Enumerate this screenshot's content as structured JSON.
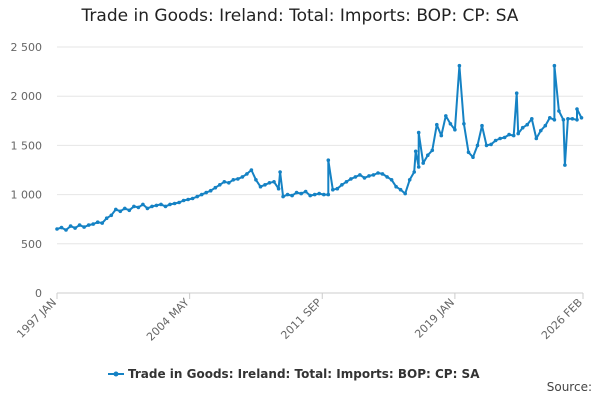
{
  "title": "Trade in Goods: Ireland: Total: Imports: BOP: CP: SA",
  "source_label": "Source:",
  "colors": {
    "series": "#1582c4",
    "grid": "#e6e6e6",
    "axis": "#cccccc",
    "tick_text": "#666666"
  },
  "chart_data": {
    "type": "line",
    "title": "Trade in Goods: Ireland: Total: Imports: BOP: CP: SA",
    "xlabel": "",
    "ylabel": "",
    "x_start": "1997 JAN",
    "x_end": "2026 FEB",
    "xlim_months": [
      0,
      349
    ],
    "ylim": [
      0,
      2500
    ],
    "yticks": [
      0,
      500,
      1000,
      1500,
      2000,
      2500
    ],
    "ytick_labels": [
      "0",
      "500",
      "1 000",
      "1 500",
      "2 000",
      "2 500"
    ],
    "xticks": [
      {
        "month": 0,
        "label": "1997 JAN"
      },
      {
        "month": 88,
        "label": "2004 MAY"
      },
      {
        "month": 176,
        "label": "2011 SEP"
      },
      {
        "month": 264,
        "label": "2019 JAN"
      },
      {
        "month": 349,
        "label": "2026 FEB"
      }
    ],
    "legend": "bottom-center",
    "series": [
      {
        "name": "Trade in Goods: Ireland: Total: Imports: BOP: CP: SA",
        "sample_every_months": 3,
        "values": [
          650,
          665,
          640,
          680,
          660,
          690,
          670,
          690,
          700,
          720,
          710,
          760,
          790,
          850,
          830,
          860,
          840,
          880,
          870,
          900,
          860,
          880,
          890,
          900,
          880,
          900,
          910,
          920,
          940,
          950,
          960,
          980,
          1000,
          1020,
          1040,
          1070,
          1100,
          1130,
          1120,
          1150,
          1160,
          1180,
          1210,
          1250,
          1150,
          1080,
          1100,
          1120,
          1130,
          1060,
          980,
          1000,
          990,
          1020,
          1010,
          1030,
          990,
          1000,
          1010,
          1000,
          1000,
          1050,
          1060,
          1100,
          1130,
          1160,
          1180,
          1200,
          1170,
          1190,
          1200,
          1220,
          1210,
          1180,
          1150,
          1080,
          1050,
          1010,
          1150,
          1230,
          1280,
          1320,
          1400,
          1450,
          1710,
          1600,
          1800,
          1720,
          1660,
          2310,
          1720,
          1430,
          1380,
          1500,
          1700,
          1500,
          1510,
          1550,
          1570,
          1580,
          1610,
          1600,
          1620,
          1680,
          1710,
          1770,
          1570,
          1650,
          1700,
          1780,
          1760,
          1850,
          1760,
          1770,
          1770,
          1760,
          1780
        ]
      }
    ],
    "annotations": [
      {
        "month": 148,
        "value": 1230
      },
      {
        "month": 180,
        "value": 1350
      },
      {
        "month": 238,
        "value": 1440
      },
      {
        "month": 240,
        "value": 1630
      },
      {
        "month": 305,
        "value": 2030
      },
      {
        "month": 330,
        "value": 2310
      },
      {
        "month": 337,
        "value": 1300
      },
      {
        "month": 345,
        "value": 1870
      }
    ]
  }
}
